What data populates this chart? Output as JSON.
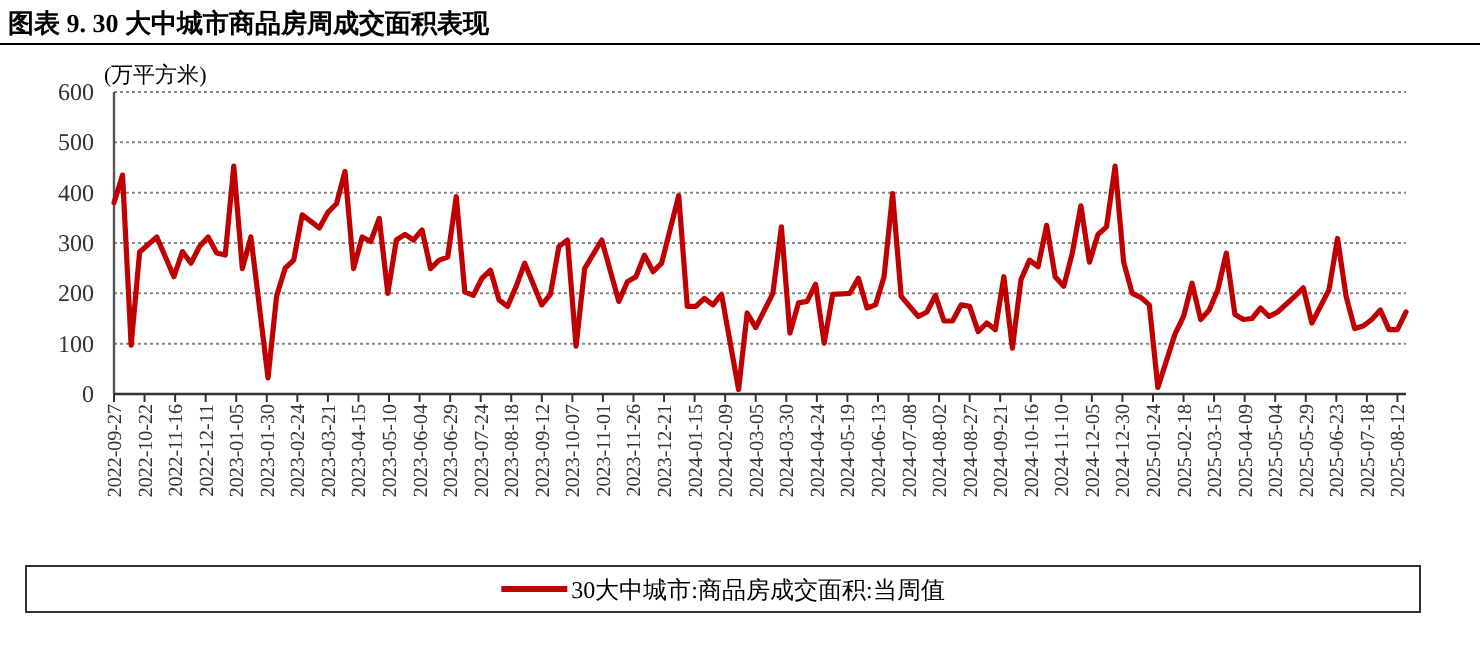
{
  "chart_data": {
    "type": "line",
    "title": "图表 9. 30 大中城市商品房周成交面积表现",
    "ylabel": "(万平方米)",
    "xlim": [
      "2022-09-27",
      "2025-08-19"
    ],
    "ylim": [
      0,
      600
    ],
    "yticks": [
      0,
      100,
      200,
      300,
      400,
      500,
      600
    ],
    "xticks": [
      "2022-09-27",
      "2022-10-22",
      "2022-11-16",
      "2022-12-11",
      "2023-01-05",
      "2023-01-30",
      "2023-02-24",
      "2023-03-21",
      "2023-04-15",
      "2023-05-10",
      "2023-06-04",
      "2023-06-29",
      "2023-07-24",
      "2023-08-18",
      "2023-09-12",
      "2023-10-07",
      "2023-11-01",
      "2023-11-26",
      "2023-12-21",
      "2024-01-15",
      "2024-02-09",
      "2024-03-05",
      "2024-03-30",
      "2024-04-24",
      "2024-05-19",
      "2024-06-13",
      "2024-07-08",
      "2024-08-02",
      "2024-08-27",
      "2024-09-21",
      "2024-10-16",
      "2024-11-10",
      "2024-12-05",
      "2024-12-30",
      "2025-01-24",
      "2025-02-18",
      "2025-03-15",
      "2025-04-09",
      "2025-05-04",
      "2025-05-29",
      "2025-06-23",
      "2025-07-18",
      "2025-08-12"
    ],
    "grid": "y",
    "legend": "bottom",
    "line_style": "solid",
    "marker": "none",
    "series": [
      {
        "name": "30大中城市:商品房成交面积:当周值",
        "color": "#c00000",
        "x": [
          "2022-09-27",
          "2022-10-04",
          "2022-10-11",
          "2022-10-18",
          "2022-11-01",
          "2022-11-15",
          "2022-11-22",
          "2022-11-29",
          "2022-12-06",
          "2022-12-13",
          "2022-12-20",
          "2022-12-27",
          "2023-01-03",
          "2023-01-10",
          "2023-01-17",
          "2023-01-31",
          "2023-02-07",
          "2023-02-14",
          "2023-02-21",
          "2023-02-28",
          "2023-03-14",
          "2023-03-21",
          "2023-03-28",
          "2023-04-04",
          "2023-04-11",
          "2023-04-18",
          "2023-04-25",
          "2023-05-02",
          "2023-05-09",
          "2023-05-16",
          "2023-05-23",
          "2023-05-30",
          "2023-06-06",
          "2023-06-13",
          "2023-06-20",
          "2023-06-27",
          "2023-07-04",
          "2023-07-11",
          "2023-07-18",
          "2023-07-25",
          "2023-08-01",
          "2023-08-08",
          "2023-08-15",
          "2023-08-22",
          "2023-08-29",
          "2023-09-12",
          "2023-09-19",
          "2023-09-26",
          "2023-10-03",
          "2023-10-10",
          "2023-10-17",
          "2023-10-31",
          "2023-11-14",
          "2023-11-21",
          "2023-11-28",
          "2023-12-05",
          "2023-12-12",
          "2023-12-19",
          "2024-01-02",
          "2024-01-09",
          "2024-01-16",
          "2024-01-23",
          "2024-01-30",
          "2024-02-06",
          "2024-02-20",
          "2024-02-27",
          "2024-03-05",
          "2024-03-19",
          "2024-03-26",
          "2024-04-02",
          "2024-04-09",
          "2024-04-16",
          "2024-04-23",
          "2024-04-30",
          "2024-05-07",
          "2024-05-21",
          "2024-05-28",
          "2024-06-04",
          "2024-06-11",
          "2024-06-18",
          "2024-06-25",
          "2024-07-02",
          "2024-07-16",
          "2024-07-23",
          "2024-07-30",
          "2024-08-06",
          "2024-08-13",
          "2024-08-20",
          "2024-08-27",
          "2024-09-03",
          "2024-09-10",
          "2024-09-17",
          "2024-09-24",
          "2024-10-01",
          "2024-10-08",
          "2024-10-15",
          "2024-10-22",
          "2024-10-29",
          "2024-11-05",
          "2024-11-12",
          "2024-11-19",
          "2024-11-26",
          "2024-12-03",
          "2024-12-10",
          "2024-12-17",
          "2024-12-24",
          "2024-12-31",
          "2025-01-07",
          "2025-01-14",
          "2025-01-21",
          "2025-01-28",
          "2025-02-11",
          "2025-02-18",
          "2025-02-25",
          "2025-03-04",
          "2025-03-11",
          "2025-03-18",
          "2025-03-25",
          "2025-04-01",
          "2025-04-08",
          "2025-04-15",
          "2025-04-22",
          "2025-04-29",
          "2025-05-06",
          "2025-05-20",
          "2025-05-27",
          "2025-06-03",
          "2025-06-17",
          "2025-06-24",
          "2025-07-01",
          "2025-07-08",
          "2025-07-15",
          "2025-07-22",
          "2025-07-29",
          "2025-08-05",
          "2025-08-12",
          "2025-08-19"
        ],
        "values": [
          380,
          435,
          97,
          282,
          312,
          233,
          283,
          260,
          293,
          312,
          280,
          276,
          453,
          249,
          312,
          32,
          194,
          250,
          266,
          356,
          330,
          361,
          378,
          442,
          249,
          312,
          303,
          349,
          200,
          306,
          317,
          306,
          326,
          249,
          266,
          272,
          392,
          203,
          196,
          230,
          246,
          187,
          174,
          214,
          260,
          177,
          198,
          293,
          306,
          95,
          249,
          306,
          184,
          223,
          233,
          276,
          243,
          260,
          394,
          174,
          174,
          190,
          177,
          198,
          9,
          161,
          132,
          200,
          332,
          121,
          181,
          184,
          218,
          101,
          198,
          200,
          230,
          171,
          177,
          233,
          398,
          194,
          154,
          163,
          196,
          145,
          145,
          177,
          174,
          124,
          141,
          128,
          233,
          91,
          227,
          266,
          253,
          335,
          233,
          214,
          280,
          374,
          262,
          317,
          332,
          453,
          262,
          200,
          192,
          177,
          13,
          119,
          154,
          220,
          148,
          167,
          207,
          280,
          158,
          148,
          150,
          171,
          154,
          163,
          194,
          211,
          141,
          207,
          309,
          194,
          130,
          135,
          148,
          167,
          128,
          128,
          163
        ]
      }
    ]
  }
}
